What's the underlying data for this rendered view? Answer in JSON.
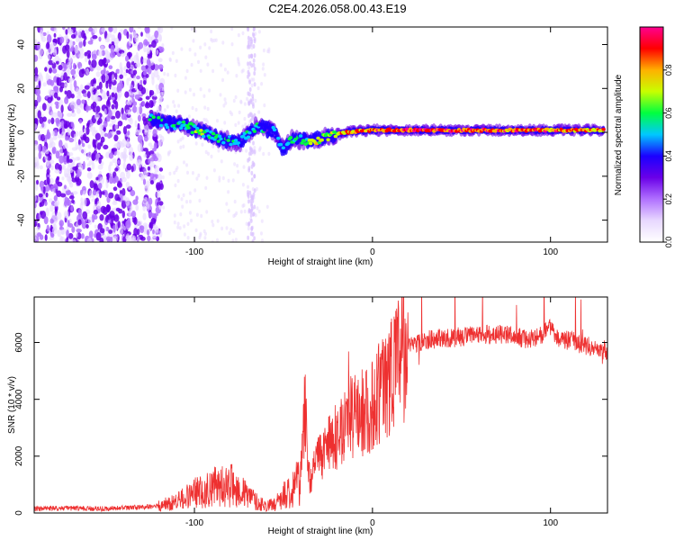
{
  "page_title": "C2E4.2026.058.00.43.E19",
  "chart_data": [
    {
      "id": "spectrogram",
      "type": "heatmap",
      "xlabel": "Height of straight line (km)",
      "ylabel": "Frequency (Hz)",
      "xlim": [
        -190,
        132
      ],
      "ylim": [
        -50,
        48
      ],
      "xticks": [
        -100,
        0,
        100
      ],
      "xtick_labels": [
        "-100",
        "0",
        "100"
      ],
      "yticks": [
        -40,
        -20,
        0,
        20,
        40
      ],
      "ytick_labels": [
        "-40",
        "-20",
        "0",
        "20",
        "40"
      ],
      "colorbar": {
        "label": "Normalized spectral amplitude",
        "range": [
          0.0,
          1.0
        ],
        "ticks": [
          0.0,
          0.2,
          0.4,
          0.6,
          0.8
        ],
        "tick_labels": [
          "0.0",
          "0.2",
          "0.4",
          "0.6",
          "0.8"
        ],
        "colors": [
          "#ffffff",
          "#e8d8ff",
          "#b070ff",
          "#6a00e8",
          "#1b00ff",
          "#00c8ff",
          "#00ff40",
          "#c8ff00",
          "#ffb000",
          "#ff0000",
          "#ff0090"
        ]
      },
      "noise_region_x": [
        -190,
        -118
      ],
      "trace": [
        {
          "x": -125,
          "y": 6,
          "amp": 0.45
        },
        {
          "x": -115,
          "y": 4,
          "amp": 0.5
        },
        {
          "x": -105,
          "y": 3,
          "amp": 0.55
        },
        {
          "x": -95,
          "y": 0,
          "amp": 0.55
        },
        {
          "x": -85,
          "y": -3,
          "amp": 0.5
        },
        {
          "x": -75,
          "y": -5,
          "amp": 0.45
        },
        {
          "x": -65,
          "y": 3,
          "amp": 0.5
        },
        {
          "x": -55,
          "y": 0,
          "amp": 0.45
        },
        {
          "x": -50,
          "y": -8,
          "amp": 0.4
        },
        {
          "x": -45,
          "y": -3,
          "amp": 0.5
        },
        {
          "x": -35,
          "y": -4,
          "amp": 0.6
        },
        {
          "x": -25,
          "y": -2,
          "amp": 0.7
        },
        {
          "x": -15,
          "y": 0,
          "amp": 0.8
        },
        {
          "x": 0,
          "y": 1,
          "amp": 0.85
        },
        {
          "x": 20,
          "y": 1,
          "amp": 0.9
        },
        {
          "x": 40,
          "y": 1,
          "amp": 0.9
        },
        {
          "x": 60,
          "y": 1,
          "amp": 0.88
        },
        {
          "x": 80,
          "y": 1,
          "amp": 0.85
        },
        {
          "x": 100,
          "y": 1,
          "amp": 0.85
        },
        {
          "x": 115,
          "y": 1,
          "amp": 0.8
        },
        {
          "x": 130,
          "y": 1,
          "amp": 0.8
        }
      ]
    },
    {
      "id": "snr",
      "type": "line",
      "xlabel": "Height of straight line (km)",
      "ylabel": "SNR (10 * v/v)",
      "xlim": [
        -190,
        132
      ],
      "ylim": [
        0,
        7600
      ],
      "xticks": [
        -100,
        0,
        100
      ],
      "xtick_labels": [
        "-100",
        "0",
        "100"
      ],
      "yticks": [
        0,
        2000,
        4000,
        6000
      ],
      "ytick_labels": [
        "0",
        "2000",
        "4000",
        "6000"
      ],
      "line_color": "#ee3030",
      "series": [
        {
          "name": "SNR",
          "x": [
            -190,
            -170,
            -150,
            -130,
            -120,
            -110,
            -100,
            -90,
            -80,
            -70,
            -65,
            -60,
            -55,
            -50,
            -45,
            -40,
            -38,
            -36,
            -35,
            -30,
            -25,
            -20,
            -15,
            -10,
            -5,
            0,
            5,
            10,
            15,
            20,
            25,
            30,
            40,
            50,
            60,
            70,
            80,
            90,
            95,
            100,
            105,
            110,
            120,
            132
          ],
          "y": [
            150,
            170,
            150,
            200,
            250,
            400,
            700,
            900,
            1000,
            600,
            400,
            250,
            300,
            600,
            900,
            1300,
            4000,
            1400,
            1200,
            2000,
            2300,
            2700,
            3200,
            3500,
            3500,
            3800,
            4300,
            5000,
            5500,
            5800,
            6000,
            6100,
            6150,
            6200,
            6250,
            6300,
            6200,
            6100,
            6300,
            6500,
            6000,
            6100,
            5900,
            5700
          ]
        }
      ]
    }
  ]
}
